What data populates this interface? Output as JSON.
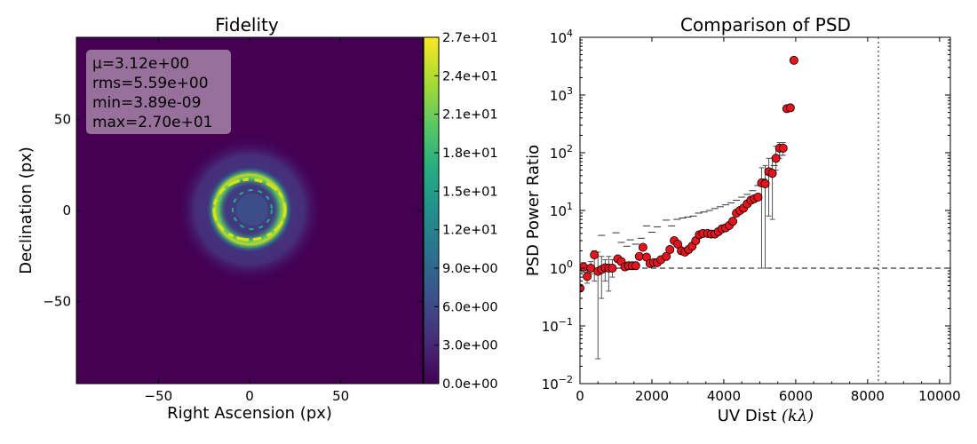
{
  "chart_data": [
    {
      "type": "heatmap",
      "title": "Fidelity",
      "xlabel": "Right Ascension (px)",
      "ylabel": "Declination (px)",
      "xlim": [
        -95,
        95
      ],
      "ylim": [
        -95,
        95
      ],
      "xticks": [
        -50,
        0,
        50
      ],
      "yticks": [
        -50,
        0,
        50
      ],
      "stats_lines": [
        "μ=3.12e+00",
        "rms=5.59e+00",
        "min=3.89e-09",
        "max=2.70e+01"
      ],
      "colorbar": {
        "min": 0,
        "max": 27,
        "colormap": "viridis",
        "ticks": [
          "0.0e+00",
          "3.0e+00",
          "6.0e+00",
          "9.0e+00",
          "1.2e+01",
          "1.5e+01",
          "1.8e+01",
          "2.1e+01",
          "2.4e+01",
          "2.7e+01"
        ]
      },
      "background_value": 0,
      "features": {
        "disk_radius": 38,
        "disk_level": 3.5,
        "ring_radius": 18,
        "ring_peak": 22
      }
    },
    {
      "type": "scatter",
      "title": "Comparison of PSD",
      "xlabel": "UV Dist ",
      "xlabel_unit": "(kλ)",
      "ylabel": "PSD Power Ratio",
      "xlim": [
        0,
        10300
      ],
      "ylim": [
        0.01,
        10000
      ],
      "yscale": "log",
      "xticks": [
        0,
        2000,
        4000,
        6000,
        8000,
        10000
      ],
      "yticks_exp": [
        -2,
        -1,
        0,
        1,
        2,
        3,
        4
      ],
      "ytick_base": "10",
      "reference_line_y": 1,
      "vertical_line_x": 8300,
      "marker_color": "#e8141b",
      "points": [
        [
          0,
          0.45
        ],
        [
          100,
          1.05
        ],
        [
          200,
          0.72
        ],
        [
          300,
          1.0
        ],
        [
          400,
          1.7
        ],
        [
          500,
          0.88
        ],
        [
          600,
          0.95
        ],
        [
          700,
          1.02
        ],
        [
          800,
          1.0
        ],
        [
          900,
          1.0
        ],
        [
          1050,
          1.45
        ],
        [
          1150,
          1.3
        ],
        [
          1250,
          1.05
        ],
        [
          1350,
          1.1
        ],
        [
          1450,
          1.1
        ],
        [
          1550,
          1.1
        ],
        [
          1650,
          1.6
        ],
        [
          1750,
          2.3
        ],
        [
          1850,
          1.55
        ],
        [
          1950,
          1.2
        ],
        [
          2050,
          1.25
        ],
        [
          2150,
          1.25
        ],
        [
          2250,
          1.4
        ],
        [
          2400,
          1.6
        ],
        [
          2500,
          2.1
        ],
        [
          2620,
          3.0
        ],
        [
          2720,
          2.6
        ],
        [
          2820,
          2.0
        ],
        [
          2920,
          1.9
        ],
        [
          3020,
          2.1
        ],
        [
          3120,
          2.4
        ],
        [
          3220,
          3.0
        ],
        [
          3320,
          3.8
        ],
        [
          3420,
          4.0
        ],
        [
          3550,
          4.0
        ],
        [
          3650,
          3.9
        ],
        [
          3750,
          3.9
        ],
        [
          3850,
          4.3
        ],
        [
          3950,
          4.8
        ],
        [
          4050,
          5.0
        ],
        [
          4150,
          5.5
        ],
        [
          4250,
          6.5
        ],
        [
          4350,
          9.0
        ],
        [
          4450,
          10.0
        ],
        [
          4550,
          11.0
        ],
        [
          4650,
          13.0
        ],
        [
          4750,
          15.0
        ],
        [
          4850,
          16.0
        ],
        [
          4950,
          17.0
        ],
        [
          5050,
          30.0
        ],
        [
          5150,
          29.0
        ],
        [
          5250,
          47.0
        ],
        [
          5350,
          44.0
        ],
        [
          5450,
          80.0
        ],
        [
          5550,
          120.0
        ],
        [
          5650,
          120.0
        ],
        [
          5750,
          580.0
        ],
        [
          5850,
          600.0
        ],
        [
          5950,
          4000.0
        ]
      ],
      "error_bars": [
        [
          0,
          0.3,
          0.6
        ],
        [
          100,
          0.85,
          1.25
        ],
        [
          200,
          0.55,
          0.9
        ],
        [
          300,
          0.8,
          1.3
        ],
        [
          400,
          0.6,
          2.0
        ],
        [
          500,
          0.027,
          1.9
        ],
        [
          600,
          0.3,
          1.6
        ],
        [
          700,
          0.6,
          1.4
        ],
        [
          800,
          0.4,
          1.6
        ],
        [
          900,
          0.7,
          1.4
        ],
        [
          5050,
          1.0,
          55.0
        ],
        [
          5150,
          1.0,
          60.0
        ],
        [
          5250,
          8.0,
          80.0
        ],
        [
          5350,
          7.0,
          80.0
        ],
        [
          5450,
          50.0,
          130.0
        ],
        [
          5550,
          80.0,
          150.0
        ],
        [
          5650,
          90.0,
          150.0
        ]
      ],
      "dash_points": [
        [
          600,
          3.7
        ],
        [
          1000,
          4.1
        ],
        [
          1150,
          2.8
        ],
        [
          1300,
          2.4
        ],
        [
          1400,
          3.1
        ],
        [
          1550,
          2.6
        ],
        [
          1700,
          3.3
        ],
        [
          1850,
          5.4
        ],
        [
          2000,
          4.2
        ],
        [
          2150,
          5.2
        ],
        [
          2400,
          6.8
        ],
        [
          2550,
          5.4
        ],
        [
          2700,
          7.0
        ],
        [
          2850,
          7.4
        ],
        [
          3000,
          7.7
        ],
        [
          3150,
          8.0
        ],
        [
          3300,
          9.0
        ],
        [
          3450,
          9.4
        ],
        [
          3600,
          10.0
        ],
        [
          3750,
          10.8
        ],
        [
          3900,
          11.6
        ],
        [
          4050,
          12.5
        ],
        [
          4200,
          13.5
        ],
        [
          4350,
          15.0
        ],
        [
          4500,
          17.0
        ],
        [
          4650,
          19.0
        ],
        [
          4800,
          22.0
        ],
        [
          4950,
          27.0
        ],
        [
          5100,
          35.0
        ],
        [
          5250,
          45.0
        ],
        [
          5400,
          60.0
        ],
        [
          5550,
          90.0
        ]
      ]
    }
  ]
}
